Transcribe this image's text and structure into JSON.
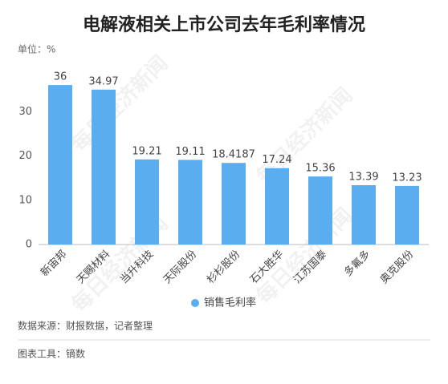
{
  "chart_data": {
    "type": "bar",
    "title": "电解液相关上市公司去年毛利率情况",
    "unit_label": "单位：%",
    "categories": [
      "新宙邦",
      "天赐材料",
      "当升科技",
      "天际股份",
      "杉杉股份",
      "石大胜华",
      "江苏国泰",
      "多氟多",
      "奥克股份"
    ],
    "series": [
      {
        "name": "销售毛利率",
        "color": "#5aaeef",
        "values": [
          36,
          34.97,
          19.21,
          19.11,
          18.4187,
          17.24,
          15.36,
          13.39,
          13.23
        ]
      }
    ],
    "ylim": [
      0,
      40
    ],
    "yticks": [
      0,
      10,
      20,
      30
    ],
    "grid": false,
    "legend": "bottom",
    "source": "数据来源：财报数据，记者整理",
    "tool": "图表工具：镝数",
    "watermark": "每日经济新闻"
  }
}
